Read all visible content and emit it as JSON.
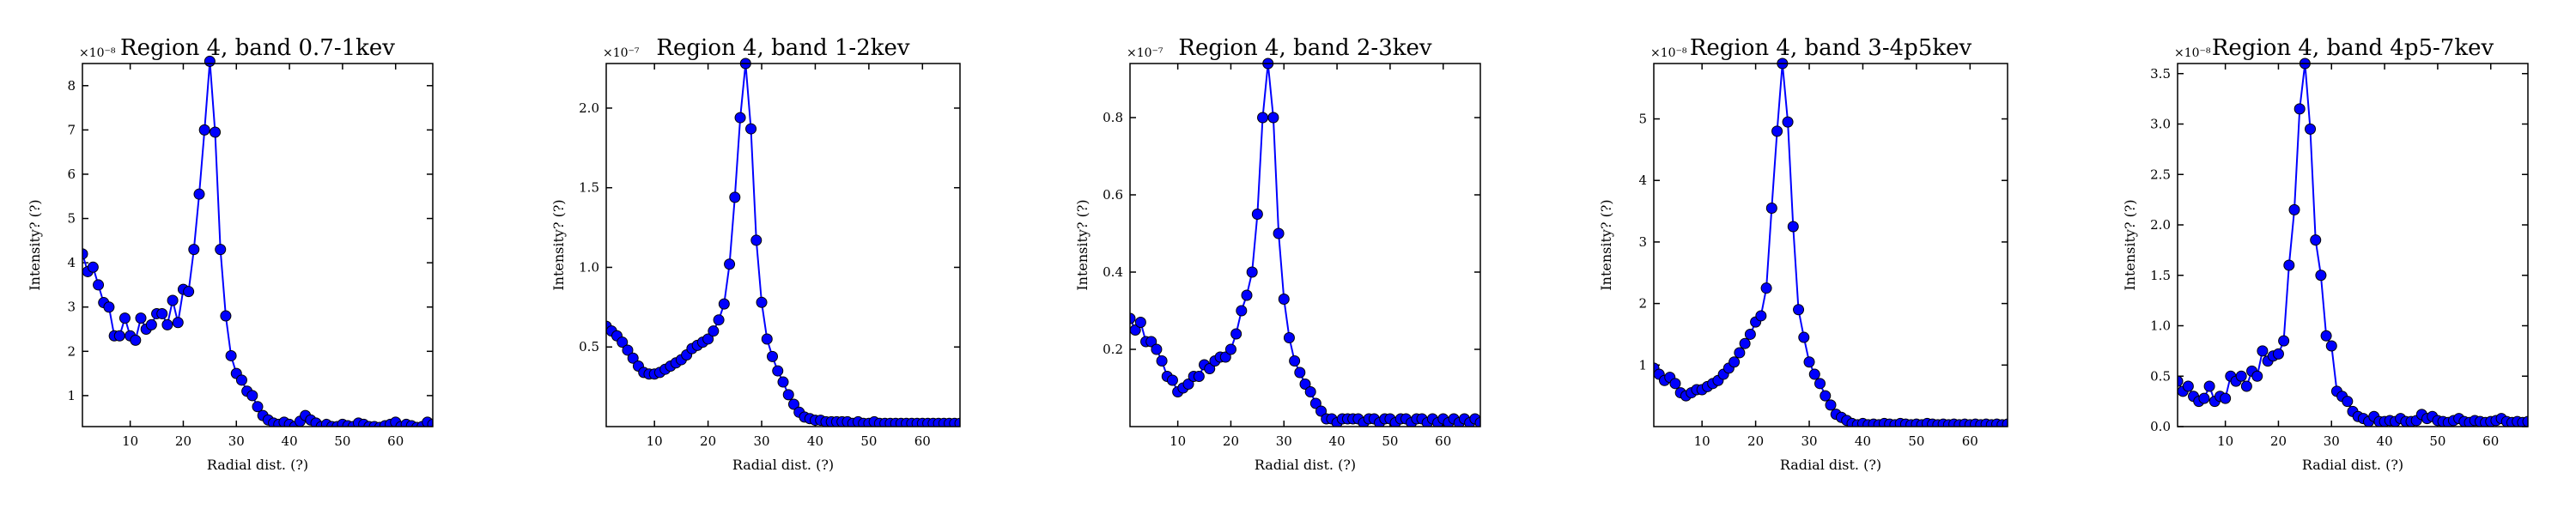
{
  "chart_data": [
    {
      "type": "line",
      "title": "Region 4, band 0.7-1kev",
      "xlabel": "Radial dist. (?)",
      "ylabel": "Intensity? (?)",
      "exponent": "×10⁻⁸",
      "xlim": [
        1,
        67
      ],
      "ylim": [
        0.3,
        8.5
      ],
      "xticks": [
        10,
        20,
        30,
        40,
        50,
        60
      ],
      "yticks": [
        1,
        2,
        3,
        4,
        5,
        6,
        7,
        8
      ],
      "x": [
        1,
        2,
        3,
        4,
        5,
        6,
        7,
        8,
        9,
        10,
        11,
        12,
        13,
        14,
        15,
        16,
        17,
        18,
        19,
        20,
        21,
        22,
        23,
        24,
        25,
        26,
        27,
        28,
        29,
        30,
        31,
        32,
        33,
        34,
        35,
        36,
        37,
        38,
        39,
        40,
        41,
        42,
        43,
        44,
        45,
        46,
        47,
        48,
        49,
        50,
        51,
        52,
        53,
        54,
        55,
        56,
        57,
        58,
        59,
        60,
        61,
        62,
        63,
        64,
        65,
        66,
        67
      ],
      "y": [
        4.2,
        3.8,
        3.9,
        3.5,
        3.1,
        3.0,
        2.35,
        2.35,
        2.75,
        2.35,
        2.25,
        2.75,
        2.5,
        2.6,
        2.85,
        2.85,
        2.6,
        3.15,
        2.65,
        3.4,
        3.35,
        4.3,
        5.55,
        7.0,
        8.55,
        6.95,
        4.3,
        2.8,
        1.9,
        1.5,
        1.35,
        1.1,
        1.0,
        0.75,
        0.55,
        0.45,
        0.38,
        0.35,
        0.4,
        0.35,
        0.3,
        0.42,
        0.55,
        0.45,
        0.38,
        0.3,
        0.35,
        0.3,
        0.3,
        0.35,
        0.32,
        0.3,
        0.38,
        0.35,
        0.3,
        0.3,
        0.28,
        0.32,
        0.35,
        0.4,
        0.3,
        0.35,
        0.32,
        0.28,
        0.3,
        0.4,
        0.35
      ],
      "color": "#0000ff"
    },
    {
      "type": "line",
      "title": "Region 4, band 1-2kev",
      "xlabel": "Radial dist. (?)",
      "ylabel": "Intensity? (?)",
      "exponent": "×10⁻⁷",
      "xlim": [
        1,
        67
      ],
      "ylim": [
        0.0,
        2.28
      ],
      "xticks": [
        10,
        20,
        30,
        40,
        50,
        60
      ],
      "yticks": [
        0.5,
        1.0,
        1.5,
        2.0
      ],
      "x": [
        1,
        2,
        3,
        4,
        5,
        6,
        7,
        8,
        9,
        10,
        11,
        12,
        13,
        14,
        15,
        16,
        17,
        18,
        19,
        20,
        21,
        22,
        23,
        24,
        25,
        26,
        27,
        28,
        29,
        30,
        31,
        32,
        33,
        34,
        35,
        36,
        37,
        38,
        39,
        40,
        41,
        42,
        43,
        44,
        45,
        46,
        47,
        48,
        49,
        50,
        51,
        52,
        53,
        54,
        55,
        56,
        57,
        58,
        59,
        60,
        61,
        62,
        63,
        64,
        65,
        66,
        67
      ],
      "y": [
        0.63,
        0.6,
        0.57,
        0.53,
        0.48,
        0.43,
        0.38,
        0.34,
        0.33,
        0.33,
        0.34,
        0.36,
        0.38,
        0.4,
        0.42,
        0.45,
        0.49,
        0.51,
        0.53,
        0.55,
        0.6,
        0.67,
        0.77,
        1.02,
        1.44,
        1.94,
        2.28,
        1.87,
        1.17,
        0.78,
        0.55,
        0.44,
        0.35,
        0.28,
        0.2,
        0.14,
        0.09,
        0.06,
        0.05,
        0.04,
        0.04,
        0.03,
        0.03,
        0.03,
        0.03,
        0.03,
        0.02,
        0.03,
        0.02,
        0.02,
        0.03,
        0.02,
        0.02,
        0.02,
        0.02,
        0.02,
        0.02,
        0.02,
        0.02,
        0.02,
        0.02,
        0.02,
        0.02,
        0.02,
        0.02,
        0.02,
        0.02
      ],
      "color": "#0000ff"
    },
    {
      "type": "line",
      "title": "Region 4, band 2-3kev",
      "xlabel": "Radial dist. (?)",
      "ylabel": "Intensity? (?)",
      "exponent": "×10⁻⁷",
      "xlim": [
        1,
        67
      ],
      "ylim": [
        0.0,
        0.94
      ],
      "xticks": [
        10,
        20,
        30,
        40,
        50,
        60
      ],
      "yticks": [
        0.2,
        0.4,
        0.6,
        0.8
      ],
      "x": [
        1,
        2,
        3,
        4,
        5,
        6,
        7,
        8,
        9,
        10,
        11,
        12,
        13,
        14,
        15,
        16,
        17,
        18,
        19,
        20,
        21,
        22,
        23,
        24,
        25,
        26,
        27,
        28,
        29,
        30,
        31,
        32,
        33,
        34,
        35,
        36,
        37,
        38,
        39,
        40,
        41,
        42,
        43,
        44,
        45,
        46,
        47,
        48,
        49,
        50,
        51,
        52,
        53,
        54,
        55,
        56,
        57,
        58,
        59,
        60,
        61,
        62,
        63,
        64,
        65,
        66,
        67
      ],
      "y": [
        0.28,
        0.25,
        0.27,
        0.22,
        0.22,
        0.2,
        0.17,
        0.13,
        0.12,
        0.09,
        0.1,
        0.11,
        0.13,
        0.13,
        0.16,
        0.15,
        0.17,
        0.18,
        0.18,
        0.2,
        0.24,
        0.3,
        0.34,
        0.4,
        0.55,
        0.8,
        0.94,
        0.8,
        0.5,
        0.33,
        0.23,
        0.17,
        0.14,
        0.11,
        0.09,
        0.06,
        0.04,
        0.02,
        0.02,
        0.01,
        0.02,
        0.02,
        0.02,
        0.02,
        0.01,
        0.02,
        0.02,
        0.01,
        0.02,
        0.02,
        0.01,
        0.02,
        0.02,
        0.01,
        0.02,
        0.02,
        0.01,
        0.02,
        0.01,
        0.02,
        0.01,
        0.02,
        0.01,
        0.02,
        0.01,
        0.02,
        0.01
      ],
      "color": "#0000ff"
    },
    {
      "type": "line",
      "title": "Region 4, band 3-4p5kev",
      "xlabel": "Radial dist. (?)",
      "ylabel": "Intensity? (?)",
      "exponent": "×10⁻⁸",
      "xlim": [
        1,
        67
      ],
      "ylim": [
        0.0,
        5.9
      ],
      "xticks": [
        10,
        20,
        30,
        40,
        50,
        60
      ],
      "yticks": [
        1,
        2,
        3,
        4,
        5
      ],
      "x": [
        1,
        2,
        3,
        4,
        5,
        6,
        7,
        8,
        9,
        10,
        11,
        12,
        13,
        14,
        15,
        16,
        17,
        18,
        19,
        20,
        21,
        22,
        23,
        24,
        25,
        26,
        27,
        28,
        29,
        30,
        31,
        32,
        33,
        34,
        35,
        36,
        37,
        38,
        39,
        40,
        41,
        42,
        43,
        44,
        45,
        46,
        47,
        48,
        49,
        50,
        51,
        52,
        53,
        54,
        55,
        56,
        57,
        58,
        59,
        60,
        61,
        62,
        63,
        64,
        65,
        66,
        67
      ],
      "y": [
        0.95,
        0.85,
        0.75,
        0.8,
        0.7,
        0.55,
        0.5,
        0.55,
        0.6,
        0.6,
        0.65,
        0.7,
        0.75,
        0.85,
        0.95,
        1.05,
        1.2,
        1.35,
        1.5,
        1.7,
        1.8,
        2.25,
        3.55,
        4.8,
        5.9,
        4.95,
        3.25,
        1.9,
        1.45,
        1.05,
        0.85,
        0.7,
        0.5,
        0.35,
        0.2,
        0.15,
        0.1,
        0.05,
        0.03,
        0.05,
        0.03,
        0.04,
        0.03,
        0.05,
        0.04,
        0.03,
        0.05,
        0.04,
        0.03,
        0.04,
        0.03,
        0.05,
        0.04,
        0.03,
        0.04,
        0.03,
        0.04,
        0.03,
        0.04,
        0.03,
        0.04,
        0.03,
        0.04,
        0.03,
        0.04,
        0.03,
        0.04
      ],
      "color": "#0000ff"
    },
    {
      "type": "line",
      "title": "Region 4, band 4p5-7kev",
      "xlabel": "Radial dist. (?)",
      "ylabel": "Intensity? (?)",
      "exponent": "×10⁻⁸",
      "xlim": [
        1,
        67
      ],
      "ylim": [
        0.0,
        3.6
      ],
      "xticks": [
        10,
        20,
        30,
        40,
        50,
        60
      ],
      "yticks": [
        0.0,
        0.5,
        1.0,
        1.5,
        2.0,
        2.5,
        3.0,
        3.5
      ],
      "x": [
        1,
        2,
        3,
        4,
        5,
        6,
        7,
        8,
        9,
        10,
        11,
        12,
        13,
        14,
        15,
        16,
        17,
        18,
        19,
        20,
        21,
        22,
        23,
        24,
        25,
        26,
        27,
        28,
        29,
        30,
        31,
        32,
        33,
        34,
        35,
        36,
        37,
        38,
        39,
        40,
        41,
        42,
        43,
        44,
        45,
        46,
        47,
        48,
        49,
        50,
        51,
        52,
        53,
        54,
        55,
        56,
        57,
        58,
        59,
        60,
        61,
        62,
        63,
        64,
        65,
        66,
        67
      ],
      "y": [
        0.45,
        0.35,
        0.4,
        0.3,
        0.25,
        0.28,
        0.4,
        0.25,
        0.3,
        0.28,
        0.5,
        0.45,
        0.5,
        0.4,
        0.55,
        0.5,
        0.75,
        0.65,
        0.7,
        0.72,
        0.85,
        1.6,
        2.15,
        3.15,
        3.6,
        2.95,
        1.85,
        1.5,
        0.9,
        0.8,
        0.35,
        0.3,
        0.25,
        0.15,
        0.1,
        0.08,
        0.05,
        0.1,
        0.05,
        0.05,
        0.06,
        0.05,
        0.08,
        0.05,
        0.05,
        0.06,
        0.12,
        0.08,
        0.1,
        0.06,
        0.05,
        0.04,
        0.06,
        0.08,
        0.05,
        0.04,
        0.06,
        0.05,
        0.04,
        0.05,
        0.06,
        0.08,
        0.05,
        0.04,
        0.05,
        0.04,
        0.05
      ],
      "color": "#0000ff"
    }
  ]
}
